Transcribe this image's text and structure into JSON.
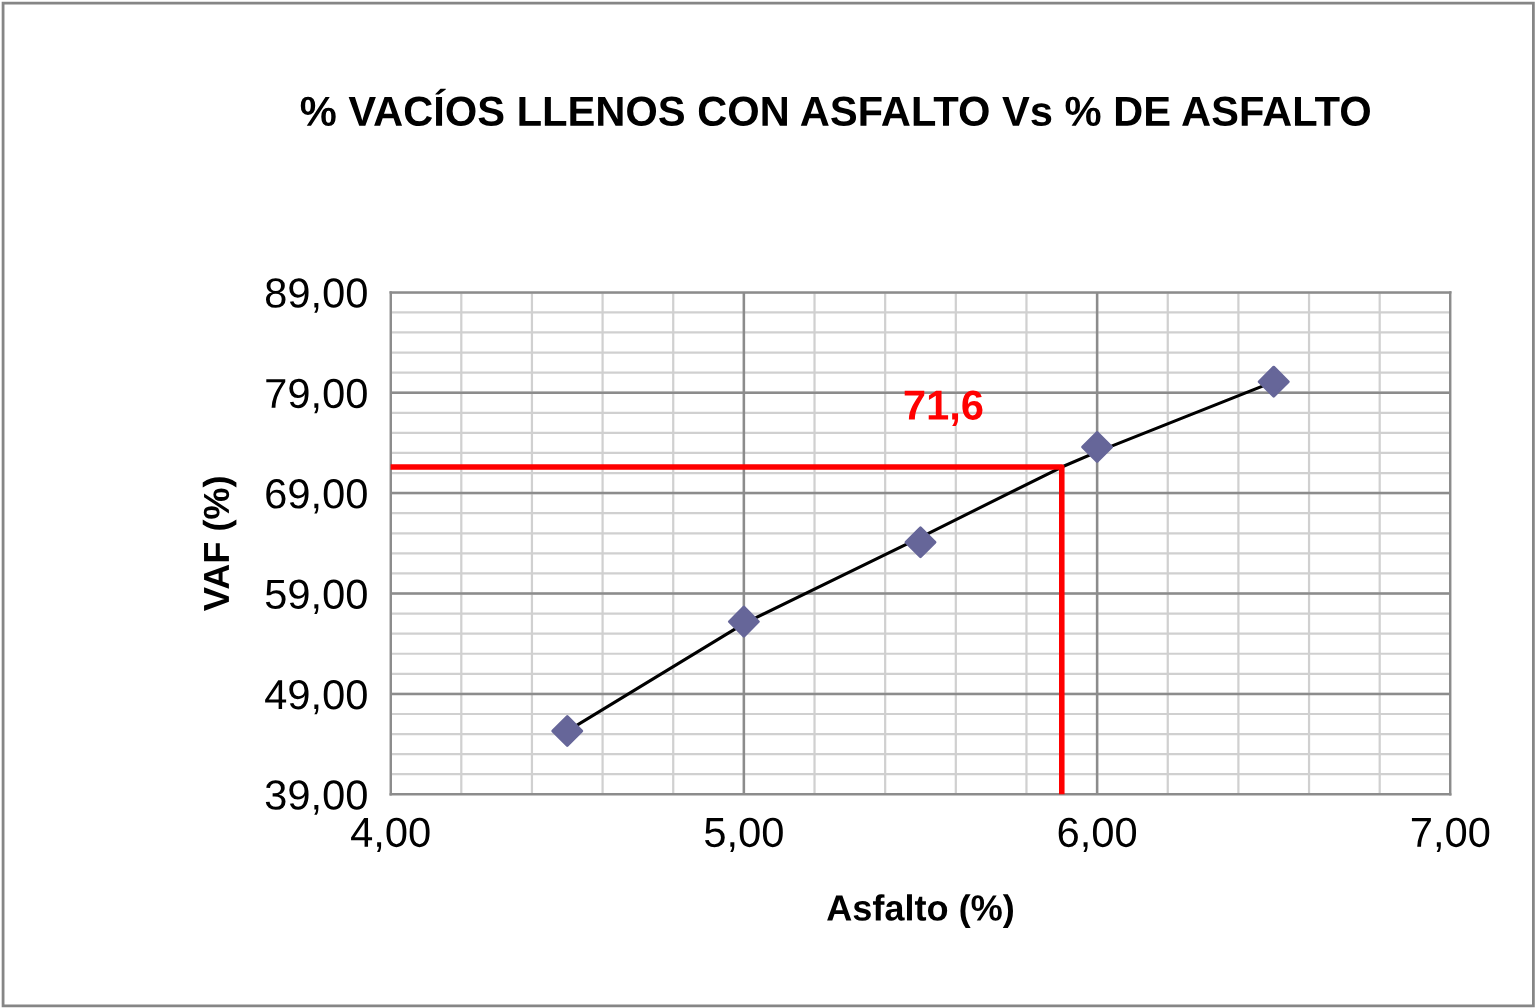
{
  "chart_data": {
    "type": "scatter",
    "title": "% VACÍOS LLENOS CON ASFALTO Vs % DE ASFALTO",
    "xlabel": "Asfalto (%)",
    "ylabel": "VAF (%)",
    "series": [
      {
        "color": "#666699",
        "marker": "diamond",
        "x": [
          4.5,
          5.0,
          5.5,
          6.0,
          6.5
        ],
        "values": [
          45.3,
          56.2,
          64.1,
          73.6,
          80.1
        ]
      },
      {
        "type": "line",
        "color": "#000000",
        "marker": "none",
        "x": [
          4.5,
          5.0,
          5.5,
          5.9,
          6.0,
          6.5
        ],
        "values": [
          45.3,
          56.0,
          64.6,
          71.6,
          73.1,
          80.1
        ]
      },
      {
        "type": "line",
        "color": "#ff0000",
        "marker": "none",
        "x": [
          4.0,
          5.9,
          5.9
        ],
        "values": [
          71.6,
          71.6,
          39.0
        ]
      }
    ],
    "annotations": [
      {
        "text": "71,6",
        "x": 5.9,
        "y": 71.6
      }
    ],
    "xlim": [
      4.0,
      7.0
    ],
    "ylim": [
      39.0,
      89.0
    ],
    "xticks": [
      {
        "value": 4.0,
        "label": "4,00"
      },
      {
        "value": 5.0,
        "label": "5,00"
      },
      {
        "value": 6.0,
        "label": "6,00"
      },
      {
        "value": 7.0,
        "label": "7,00"
      }
    ],
    "yticks": [
      {
        "value": 39,
        "label": "39,00"
      },
      {
        "value": 49,
        "label": "49,00"
      },
      {
        "value": 59,
        "label": "59,00"
      },
      {
        "value": 69,
        "label": "69,00"
      },
      {
        "value": 79,
        "label": "79,00"
      },
      {
        "value": 89,
        "label": "89,00"
      }
    ],
    "grid": true,
    "legend": false
  }
}
